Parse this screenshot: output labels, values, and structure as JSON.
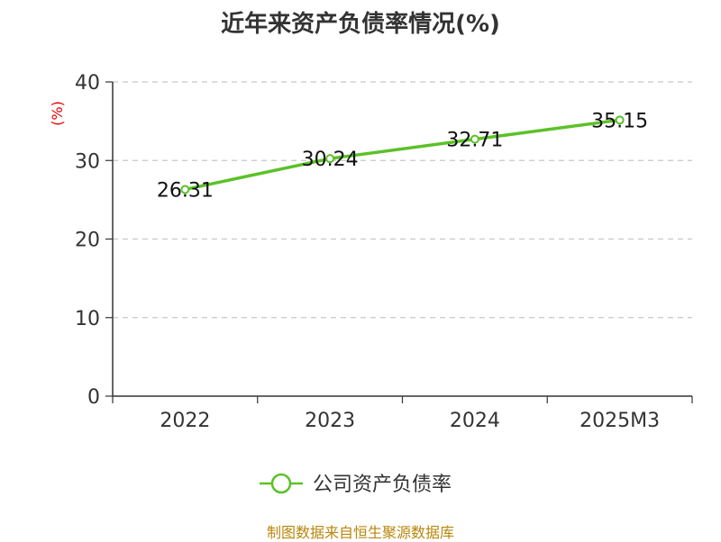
{
  "chart_data": {
    "type": "line",
    "title": "近年来资产负债率情况(%)",
    "ylabel": "(%)",
    "xlabel": "",
    "categories": [
      "2022",
      "2023",
      "2024",
      "2025M3"
    ],
    "series": [
      {
        "name": "公司资产负债率",
        "values": [
          26.31,
          30.24,
          32.71,
          35.15
        ]
      }
    ],
    "data_labels": [
      "26.31",
      "30.24",
      "32.71",
      "35.15"
    ],
    "ylim": [
      0,
      40
    ],
    "yticks": [
      "0",
      "10",
      "20",
      "30",
      "40"
    ],
    "grid": true,
    "legend": "bottom-center"
  },
  "colors": {
    "series": "#5cc128",
    "ylabel": "#e60000",
    "axis": "#333333",
    "grid": "#c8c8c8",
    "source": "#b8860b"
  },
  "source": "制图数据来自恒生聚源数据库"
}
